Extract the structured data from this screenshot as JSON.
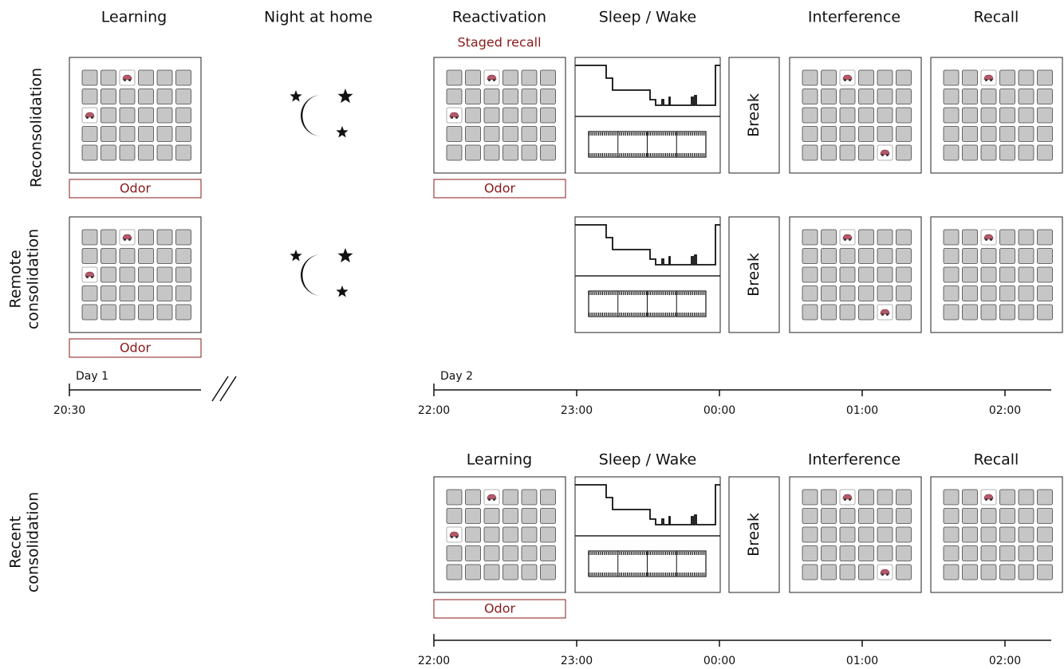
{
  "headers": [
    "Learning",
    "Night at home",
    "Reactivation",
    "Sleep / Wake",
    "Interference",
    "Recall"
  ],
  "staged_recall": "Staged recall",
  "rows": [
    {
      "label": [
        "Reconsolidation"
      ]
    },
    {
      "label": [
        "Remote",
        "consolidation"
      ]
    },
    {
      "label": [
        "Recent",
        "consolidation"
      ]
    }
  ],
  "odor_labels": [
    "Odor",
    "Odor",
    "Odor",
    "Odor"
  ],
  "break_labels": [
    "Break",
    "Break",
    "Break"
  ],
  "timeline1": {
    "day1": "Day 1",
    "day1_time": "20:30",
    "day2": "Day 2",
    "times": [
      "22:00",
      "23:00",
      "00:00",
      "01:00",
      "02:00"
    ]
  },
  "bottom_headers": [
    "Learning",
    "Sleep / Wake",
    "Interference",
    "Recall"
  ],
  "timeline2": {
    "times": [
      "22:00",
      "23:00",
      "00:00",
      "01:00",
      "02:00"
    ]
  }
}
